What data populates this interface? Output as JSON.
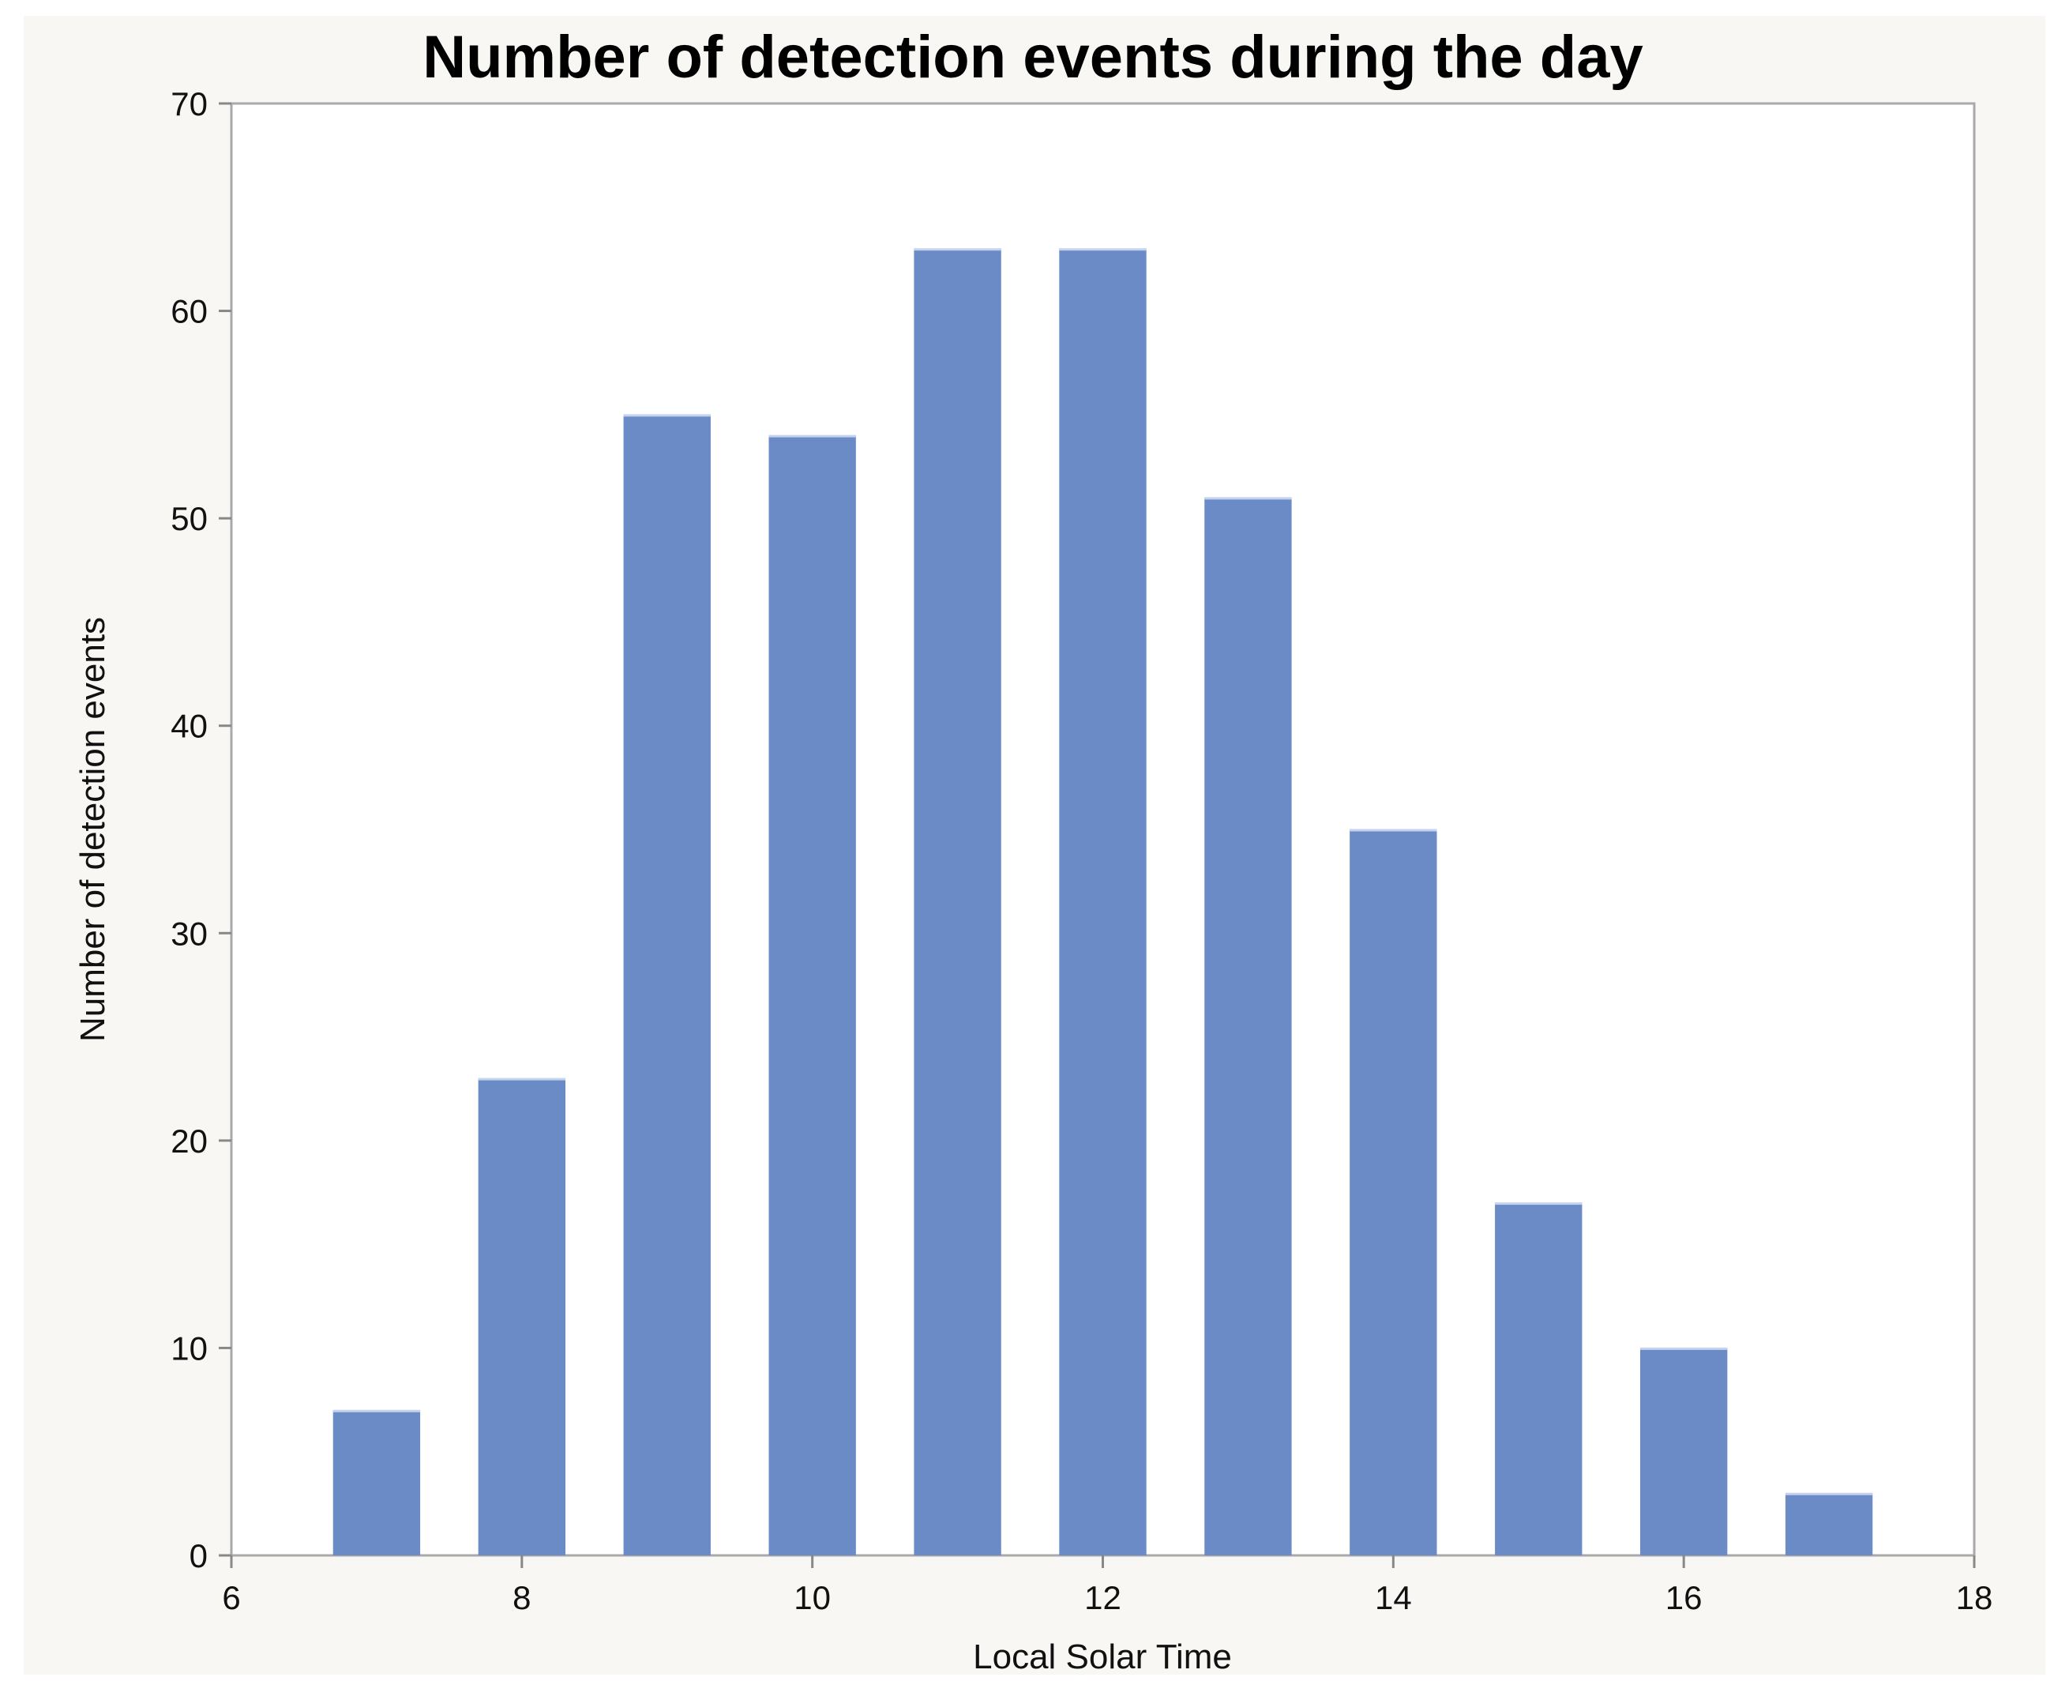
{
  "chart_data": {
    "type": "bar",
    "title": "Number of detection events during the day",
    "xlabel": "Local Solar Time",
    "ylabel": "Number of detection events",
    "x": [
      7,
      8,
      9,
      10,
      11,
      12,
      13,
      14,
      15,
      16,
      17
    ],
    "values": [
      7,
      23,
      55,
      54,
      63,
      63,
      51,
      35,
      17,
      10,
      3
    ],
    "xlim": [
      6,
      18
    ],
    "ylim": [
      0,
      70
    ],
    "xticks": [
      "6",
      "8",
      "10",
      "12",
      "14",
      "16",
      "18"
    ],
    "yticks": [
      "0",
      "10",
      "20",
      "30",
      "40",
      "50",
      "60",
      "70"
    ],
    "bar_width": 0.6,
    "bar_color": "#6a8bc6",
    "grid": false,
    "legend": "none"
  }
}
